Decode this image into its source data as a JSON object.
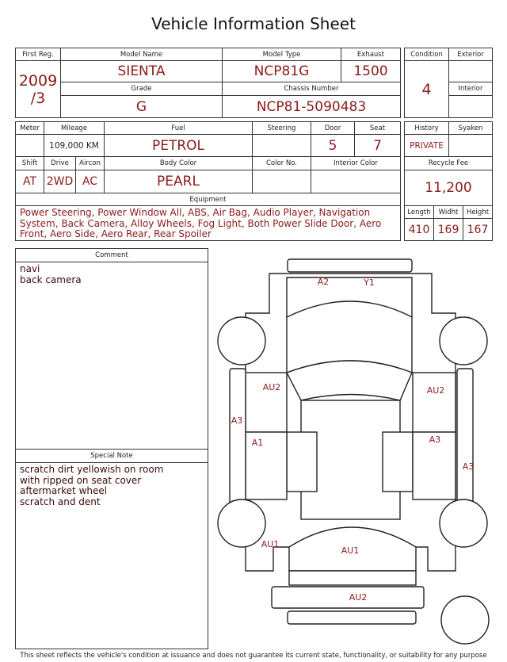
{
  "title": "Vehicle Information Sheet",
  "fields": {
    "first_reg": {
      "label": "First Reg.",
      "value": "2009 /3"
    },
    "model_name": {
      "label": "Model Name",
      "value": "SIENTA"
    },
    "model_type": {
      "label": "Model Type",
      "value": "NCP81G"
    },
    "exhaust": {
      "label": "Exhaust",
      "value": "1500"
    },
    "grade": {
      "label": "Grade",
      "value": "G"
    },
    "chassis_number": {
      "label": "Chassis Number",
      "value": "NCP81-5090483"
    },
    "condition": {
      "label": "Condition",
      "value": "4"
    },
    "exterior": {
      "label": "Exterior"
    },
    "interior": {
      "label": "Interior"
    },
    "meter": {
      "label": "Meter"
    },
    "mileage": {
      "label": "Mileage",
      "value": "109,000 KM"
    },
    "fuel": {
      "label": "Fuel",
      "value": "PETROL"
    },
    "steering": {
      "label": "Steering"
    },
    "door": {
      "label": "Door",
      "value": "5"
    },
    "seat": {
      "label": "Seat",
      "value": "7"
    },
    "shift": {
      "label": "Shift",
      "value": "AT"
    },
    "drive": {
      "label": "Drive",
      "value": "2WD"
    },
    "aircon": {
      "label": "Aircon",
      "value": "AC"
    },
    "body_color": {
      "label": "Body Color",
      "value": "PEARL"
    },
    "color_no": {
      "label": "Color No."
    },
    "interior_color": {
      "label": "Interior Color"
    },
    "equipment": {
      "label": "Equipment",
      "value": "Power Steering, Power Window  All, ABS, Air Bag, Audio Player, Navigation System, Back Camera, Alloy Wheels, Fog Light, Both Power Slide Door, Aero Front, Aero Side, Aero Rear, Rear Spoiler"
    },
    "history": {
      "label": "History",
      "value": "PRIVATE"
    },
    "syaken": {
      "label": "Syaken"
    },
    "recycle_fee": {
      "label": "Recycle Fee",
      "value": "11,200"
    },
    "length": {
      "label": "Length",
      "value": "410"
    },
    "width": {
      "label": "Widht",
      "value": "169"
    },
    "height": {
      "label": "Height",
      "value": "167"
    },
    "comment": {
      "label": "Comment",
      "lines": [
        "navi",
        "back camera"
      ]
    },
    "special_note": {
      "label": "Special Note",
      "lines": [
        "scratch dirt yellowish on room",
        "with ripped on seat cover",
        "aftermarket wheel",
        "scratch and dent"
      ]
    }
  },
  "damage_marks": [
    "A2",
    "Y1",
    "AU2",
    "AU2",
    "A3",
    "A1",
    "A3",
    "A3",
    "AU1",
    "AU1",
    "AU2"
  ],
  "footer": "This sheet reflects the vehicle's condition at issuance and does not guarantee its current state, functionality, or suitability for any purpose"
}
